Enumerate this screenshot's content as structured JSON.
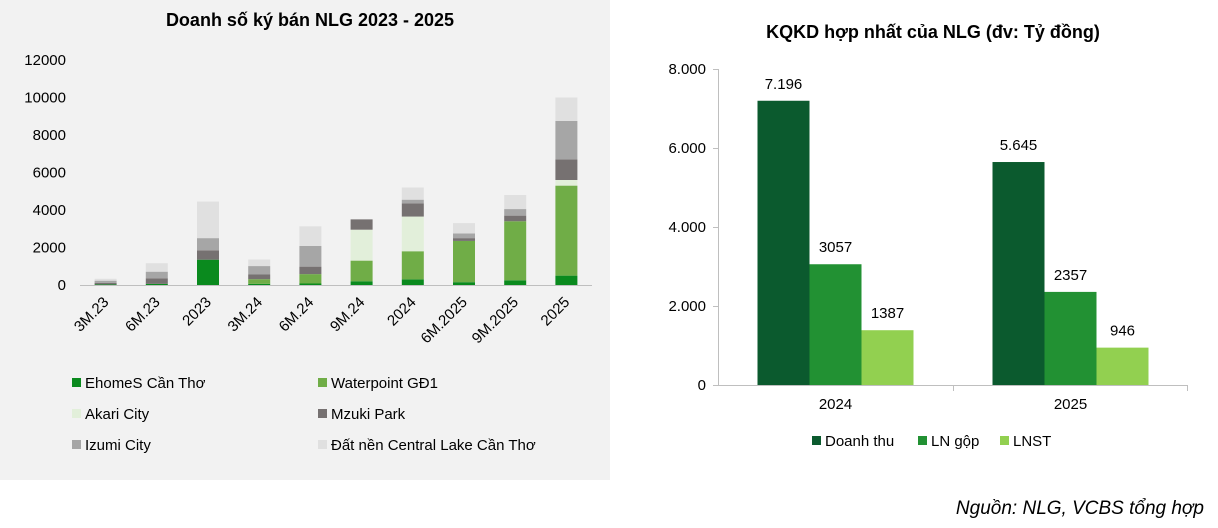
{
  "chart_data": [
    {
      "type": "bar",
      "stacked": true,
      "title": "Doanh số ký bán NLG 2023 - 2025",
      "categories": [
        "3M.23",
        "6M.23",
        "2023",
        "3M.24",
        "6M.24",
        "9M.24",
        "2024",
        "6M.2025",
        "9M.2025",
        "2025"
      ],
      "ylim": [
        0,
        12000
      ],
      "yticks": [
        "12000",
        "10000",
        "8000",
        "6000",
        "4000",
        "2000",
        "0"
      ],
      "ytick_values": [
        12000,
        10000,
        8000,
        6000,
        4000,
        2000,
        0
      ],
      "series": [
        {
          "name": "EhomeS Cần Thơ",
          "color": "#0a8a1e",
          "values": [
            30,
            60,
            1350,
            60,
            80,
            200,
            300,
            150,
            250,
            500
          ]
        },
        {
          "name": "Waterpoint GĐ1",
          "color": "#70ad47",
          "values": [
            0,
            0,
            0,
            250,
            500,
            1100,
            1500,
            2200,
            3150,
            4800
          ]
        },
        {
          "name": "Akari City",
          "color": "#e2efda",
          "values": [
            0,
            0,
            0,
            0,
            0,
            1650,
            1850,
            0,
            0,
            300
          ]
        },
        {
          "name": "Mzuki Park",
          "color": "#767171",
          "values": [
            80,
            300,
            500,
            250,
            400,
            550,
            700,
            150,
            300,
            1100
          ]
        },
        {
          "name": "Izumi City",
          "color": "#a6a6a6",
          "values": [
            120,
            350,
            650,
            450,
            1100,
            0,
            200,
            250,
            350,
            2050
          ]
        },
        {
          "name": "Đất nền Central Lake Cần Thơ",
          "color": "#e0e0e0",
          "values": [
            100,
            450,
            1950,
            350,
            1050,
            0,
            650,
            550,
            750,
            1250
          ]
        }
      ]
    },
    {
      "type": "bar",
      "title": "KQKD hợp nhất của NLG (đv: Tỷ đồng)",
      "categories": [
        "2024",
        "2025"
      ],
      "ylim": [
        0,
        8000
      ],
      "yticks": [
        "8.000",
        "6.000",
        "4.000",
        "2.000",
        "0"
      ],
      "ytick_values": [
        8000,
        6000,
        4000,
        2000,
        0
      ],
      "series": [
        {
          "name": "Doanh thu",
          "color": "#0b5a2e",
          "values": [
            7196,
            5645
          ],
          "labels": [
            "7.196",
            "5.645"
          ]
        },
        {
          "name": "LN gộp",
          "color": "#229133",
          "values": [
            3057,
            2357
          ],
          "labels": [
            "3057",
            "2357"
          ]
        },
        {
          "name": "LNST",
          "color": "#92d050",
          "values": [
            1387,
            946
          ],
          "labels": [
            "1387",
            "946"
          ]
        }
      ]
    }
  ],
  "source": "Nguồn: NLG, VCBS tổng hợp"
}
